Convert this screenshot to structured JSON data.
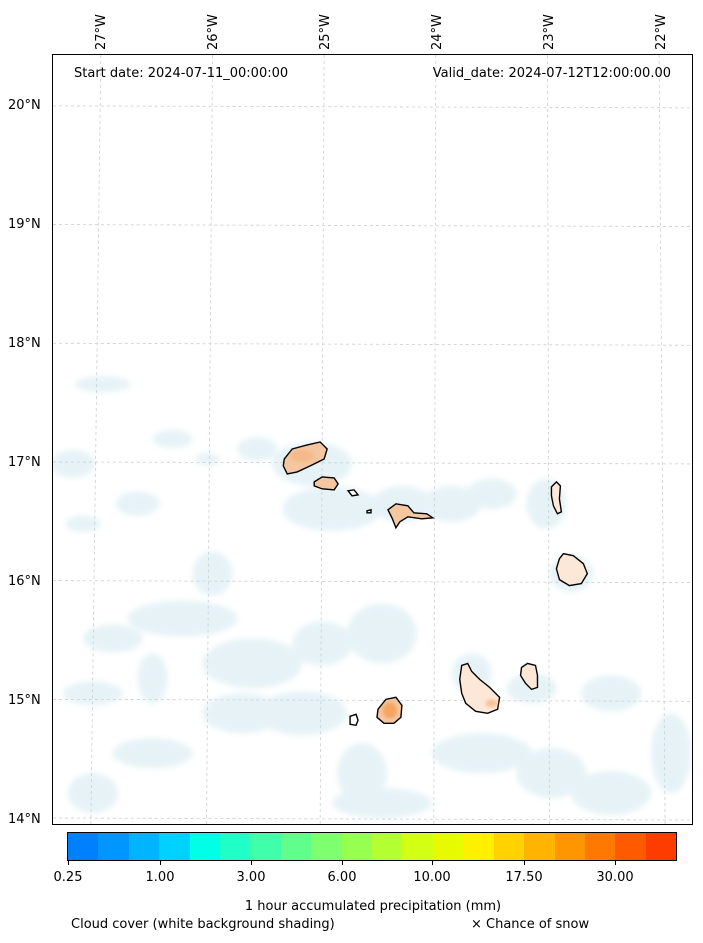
{
  "map": {
    "start_date": "Start date: 2024-07-11_00:00:00",
    "valid_date": "Valid_date: 2024-07-12T12:00:00.00",
    "lon_labels": [
      "27°W",
      "26°W",
      "25°W",
      "24°W",
      "23°W",
      "22°W"
    ],
    "lat_labels": [
      "20°N",
      "19°N",
      "18°N",
      "17°N",
      "16°N",
      "15°N",
      "14°N"
    ]
  },
  "colorbar": {
    "label": "1 hour accumulated precipitation (mm)",
    "tick_labels": [
      "0.25",
      "1.00",
      "3.00",
      "6.00",
      "10.00",
      "17.50",
      "30.00"
    ],
    "colors": [
      "#0080ff",
      "#0096ff",
      "#00b4ff",
      "#00d2ff",
      "#00ffe6",
      "#20ffc8",
      "#40ffaa",
      "#60ff8c",
      "#7dff70",
      "#96ff50",
      "#b4ff32",
      "#d2ff14",
      "#e6fa00",
      "#fff000",
      "#ffd200",
      "#ffb400",
      "#ff9600",
      "#ff7800",
      "#ff5a00",
      "#ff3c00"
    ]
  },
  "legend": {
    "cloud_cover": "Cloud cover (white background shading)",
    "snow": "× Chance of snow"
  }
}
